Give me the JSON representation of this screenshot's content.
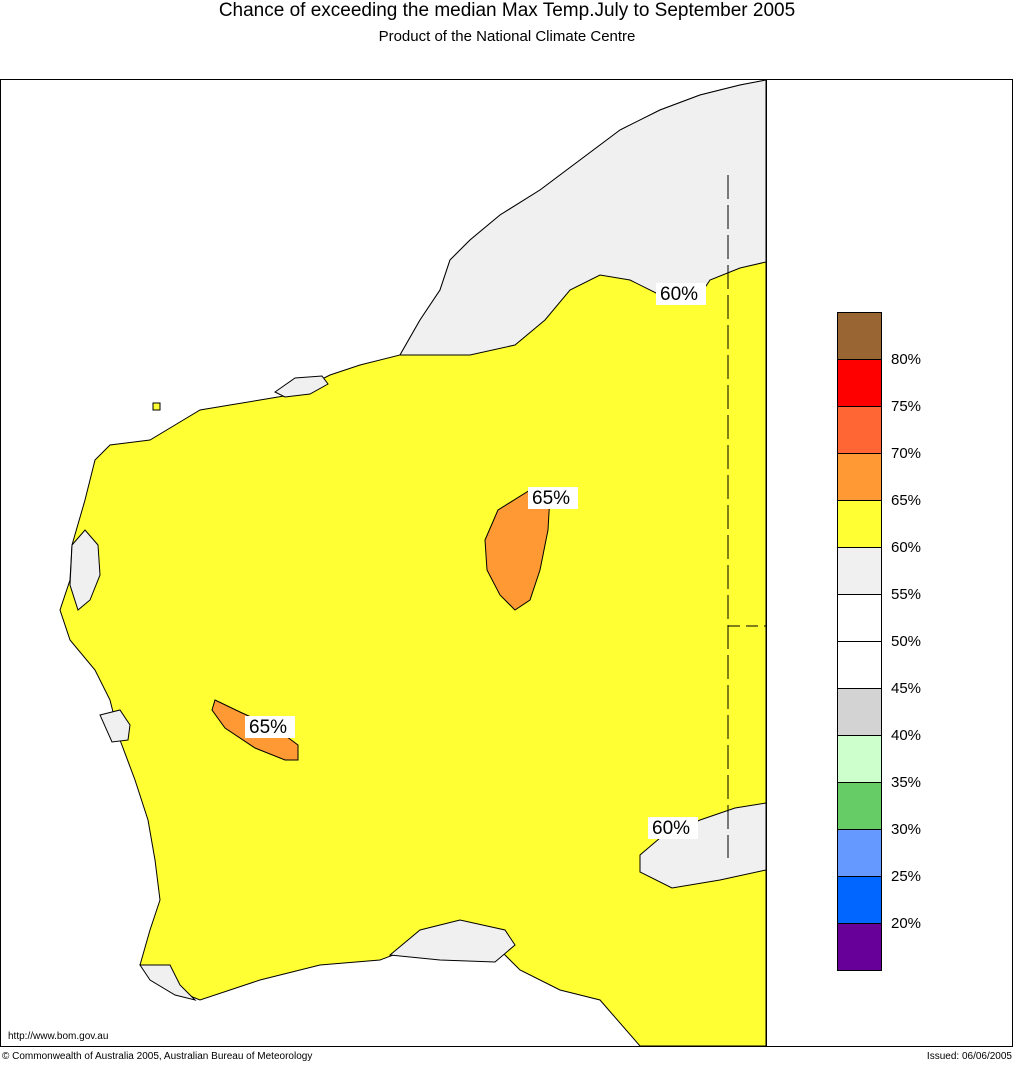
{
  "header": {
    "title": "Chance of exceeding the median Max Temp.July to September 2005",
    "subtitle": "Product of the National Climate Centre"
  },
  "map": {
    "region": "Western Australia",
    "base_fill": "#ffff33",
    "contour_labels": [
      "60%",
      "65%",
      "65%",
      "60%"
    ]
  },
  "legend": {
    "colors": [
      "#996633",
      "#ff0000",
      "#ff6633",
      "#ff9933",
      "#ffff33",
      "#f0f0f0",
      "#ffffff",
      "#ffffff",
      "#d3d3d3",
      "#ccffcc",
      "#66cc66",
      "#6699ff",
      "#0066ff",
      "#660099"
    ],
    "labels": [
      "80%",
      "75%",
      "70%",
      "65%",
      "60%",
      "55%",
      "50%",
      "45%",
      "40%",
      "35%",
      "30%",
      "25%",
      "20%"
    ]
  },
  "footer": {
    "url": "http://www.bom.gov.au",
    "copyright": "© Commonwealth of Australia 2005, Australian Bureau of Meteorology",
    "issued": "Issued: 06/06/2005"
  }
}
